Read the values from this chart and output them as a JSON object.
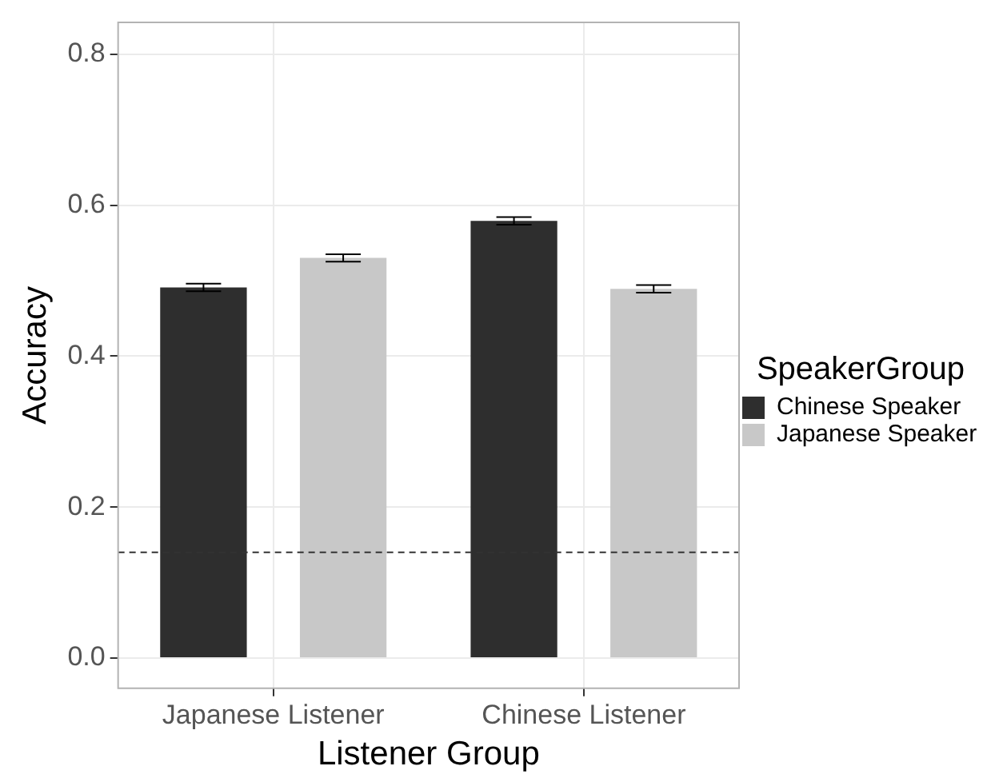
{
  "chart_data": {
    "type": "bar",
    "xlabel": "Listener Group",
    "ylabel": "Accuracy",
    "legend_title": "SpeakerGroup",
    "categories": [
      "Japanese Listener",
      "Chinese Listener"
    ],
    "series": [
      {
        "name": "Chinese Speaker",
        "color": "#2e2e2e",
        "values": [
          0.491,
          0.579
        ],
        "errors": [
          0.005,
          0.005
        ]
      },
      {
        "name": "Japanese Speaker",
        "color": "#c8c8c8",
        "values": [
          0.53,
          0.489
        ],
        "errors": [
          0.005,
          0.005
        ]
      }
    ],
    "ylim": [
      -0.04,
      0.842
    ],
    "yticks": [
      {
        "value": 0,
        "label": "0.0"
      },
      {
        "value": 0.2,
        "label": "0.2"
      },
      {
        "value": 0.4,
        "label": "0.4"
      },
      {
        "value": 0.6,
        "label": "0.6"
      },
      {
        "value": 0.8,
        "label": "0.8"
      }
    ],
    "ref_lines": [
      {
        "axis": "y",
        "value": 0.14,
        "line_style": "dashed",
        "color": "#333333"
      }
    ],
    "grid": true,
    "legend": "right"
  }
}
